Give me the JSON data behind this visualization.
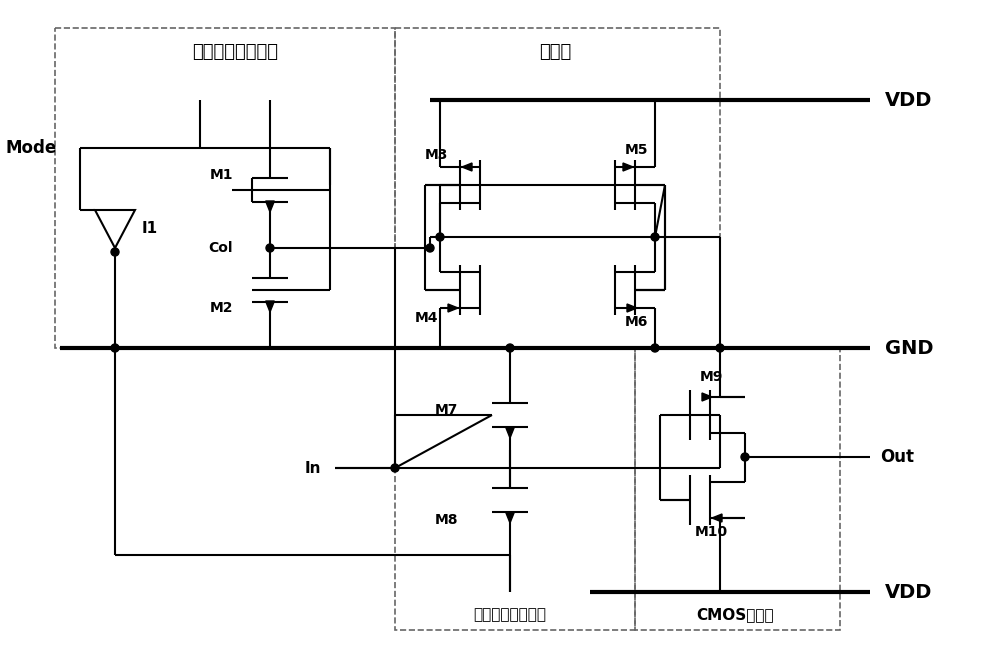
{
  "bg_color": "#ffffff",
  "labels": {
    "mode": "Mode",
    "i1": "I1",
    "col": "Col",
    "m1": "M1",
    "m2": "M2",
    "m3": "M3",
    "m4": "M4",
    "m5": "M5",
    "m6": "M6",
    "m7": "M7",
    "m8": "M8",
    "m9": "M9",
    "m10": "M10",
    "in": "In",
    "out": "Out",
    "vdd1": "VDD",
    "gnd": "GND",
    "vdd2": "VDD",
    "box1": "第一门控开关电路",
    "box2": "缓冲器",
    "box3": "第一门控开关电路",
    "box4": "CMOS反相器"
  },
  "figsize": [
    10.0,
    6.64
  ],
  "dpi": 100
}
